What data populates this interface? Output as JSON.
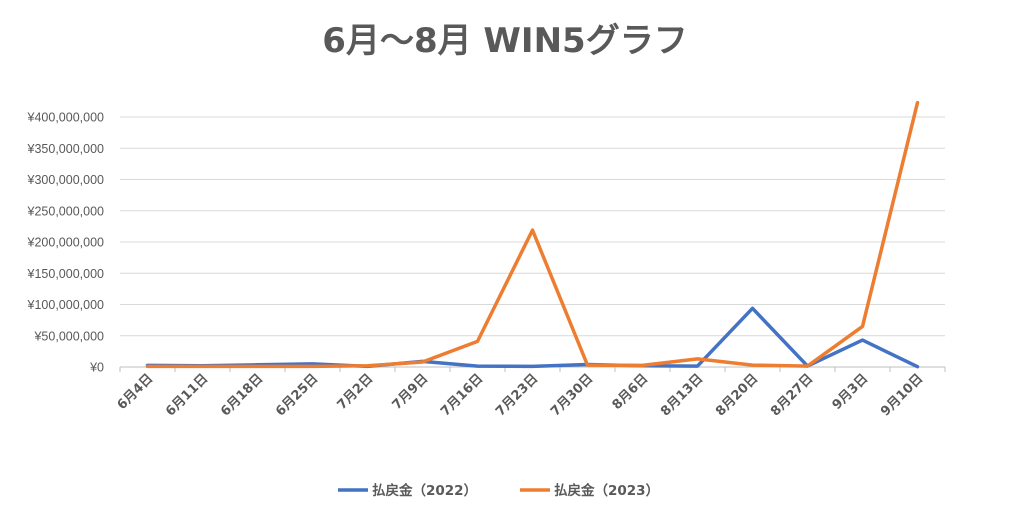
{
  "chart_data": {
    "type": "line",
    "title": "6月～8月 WIN5グラフ",
    "categories": [
      "6月4日",
      "6月11日",
      "6月18日",
      "6月25日",
      "7月2日",
      "7月9日",
      "7月16日",
      "7月23日",
      "7月30日",
      "8月6日",
      "8月13日",
      "8月20日",
      "8月27日",
      "9月3日",
      "9月10日"
    ],
    "ylim": [
      0,
      400000000
    ],
    "yticks": [
      {
        "value": 0,
        "label": "¥0"
      },
      {
        "value": 50000000,
        "label": "¥50,000,000"
      },
      {
        "value": 100000000,
        "label": "¥100,000,000"
      },
      {
        "value": 150000000,
        "label": "¥150,000,000"
      },
      {
        "value": 200000000,
        "label": "¥200,000,000"
      },
      {
        "value": 250000000,
        "label": "¥250,000,000"
      },
      {
        "value": 300000000,
        "label": "¥300,000,000"
      },
      {
        "value": 350000000,
        "label": "¥350,000,000"
      },
      {
        "value": 400000000,
        "label": "¥400,000,000"
      }
    ],
    "grid": true,
    "legend": "bottom",
    "series": [
      {
        "name": "払戻金（2022）",
        "color": "#4472C4",
        "values": [
          2500000,
          2000000,
          3500000,
          5000000,
          1000000,
          9000000,
          1500000,
          1000000,
          4000000,
          2000000,
          1500000,
          94000000,
          1500000,
          43000000,
          500000
        ]
      },
      {
        "name": "払戻金（2023）",
        "color": "#ED7D31",
        "values": [
          1000000,
          1000000,
          1000000,
          1000000,
          2000000,
          8000000,
          41000000,
          219000000,
          3000000,
          2500000,
          13000000,
          3000000,
          1500000,
          65000000,
          423000000
        ]
      }
    ]
  }
}
